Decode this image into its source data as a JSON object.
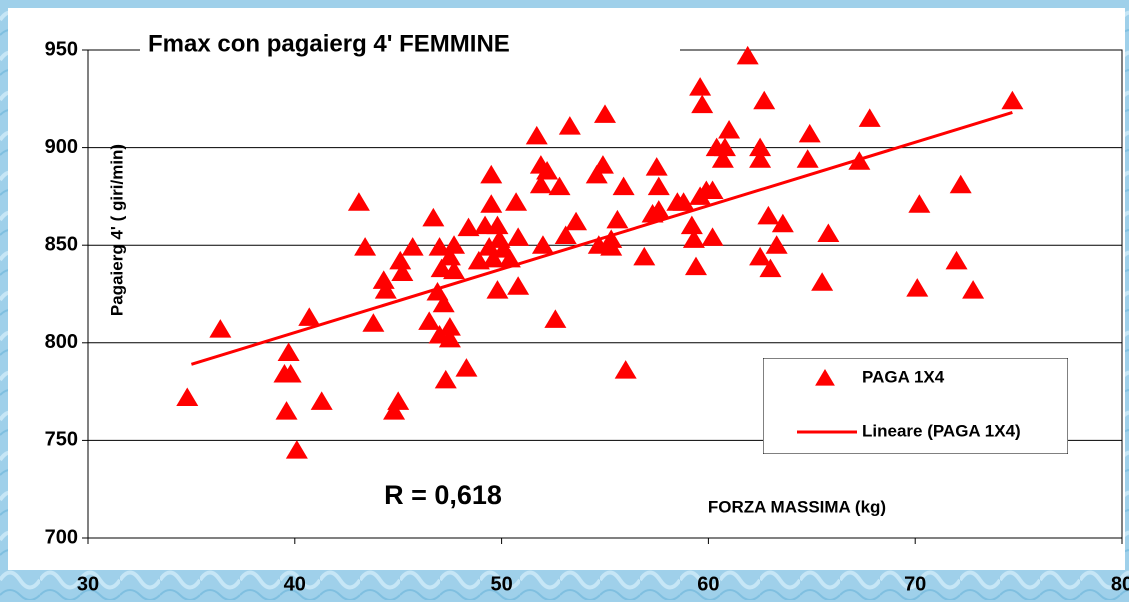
{
  "chart_data": {
    "type": "scatter",
    "title": "Fmax con pagaierg 4' FEMMINE",
    "x_label": "FORZA MASSIMA (kg)",
    "y_label": "Pagaierg 4' ( giri/min)",
    "annotation": "R = 0,618",
    "xlim": [
      30,
      80
    ],
    "xticks": [
      30,
      40,
      50,
      60,
      70,
      80
    ],
    "ylim": [
      700,
      950
    ],
    "yticks": [
      700,
      750,
      800,
      850,
      900,
      950
    ],
    "grid": true,
    "legend": "bottom-right",
    "series": [
      {
        "name": "PAGA 1X4",
        "color": "#ff0000",
        "x": [
          34.8,
          36.4,
          39.7,
          39.5,
          39.8,
          39.6,
          40.1,
          40.7,
          41.3,
          43.1,
          43.4,
          43.8,
          44.3,
          44.4,
          44.8,
          45.0,
          45.1,
          45.2,
          45.7,
          46.5,
          46.7,
          47.0,
          46.9,
          47.2,
          47.1,
          47.0,
          47.5,
          47.5,
          47.3,
          47.5,
          47.7,
          47.7,
          48.4,
          48.3,
          48.9,
          49.2,
          49.5,
          49.5,
          49.4,
          49.6,
          49.8,
          49.8,
          49.9,
          50.1,
          50.4,
          50.7,
          50.8,
          50.8,
          51.7,
          51.9,
          51.9,
          52.2,
          52.0,
          52.6,
          52.8,
          53.1,
          53.3,
          53.6,
          54.6,
          54.9,
          55.0,
          54.7,
          55.3,
          55.3,
          55.6,
          55.9,
          56.0,
          56.9,
          57.3,
          57.5,
          57.6,
          57.6,
          58.5,
          58.8,
          59.2,
          59.3,
          59.4,
          59.6,
          59.6,
          59.7,
          59.9,
          60.2,
          60.2,
          60.4,
          60.7,
          60.8,
          61.0,
          61.9,
          62.5,
          62.5,
          62.7,
          62.5,
          62.9,
          63.0,
          63.3,
          63.6,
          64.9,
          64.8,
          65.5,
          65.8,
          67.3,
          67.8,
          70.1,
          70.2,
          72.0,
          72.2,
          72.8,
          74.7
        ],
        "values": [
          772,
          807,
          795,
          784,
          784,
          765,
          745,
          813,
          770,
          872,
          849,
          810,
          832,
          827,
          765,
          770,
          842,
          836,
          849,
          811,
          864,
          849,
          826,
          820,
          838,
          804,
          808,
          802,
          781,
          844,
          837,
          850,
          859,
          787,
          842,
          860,
          871,
          886,
          849,
          843,
          860,
          827,
          853,
          848,
          843,
          872,
          854,
          829,
          906,
          891,
          881,
          888,
          850,
          812,
          880,
          855,
          911,
          862,
          886,
          891,
          917,
          850,
          849,
          853,
          863,
          880,
          786,
          844,
          866,
          890,
          880,
          868,
          872,
          872,
          860,
          853,
          839,
          875,
          931,
          922,
          878,
          878,
          854,
          900,
          894,
          900,
          909,
          947,
          894,
          900,
          924,
          844,
          865,
          838,
          850,
          861,
          907,
          894,
          831,
          856,
          893,
          915,
          828,
          871,
          842,
          881,
          827,
          924
        ]
      },
      {
        "name": "Lineare (PAGA 1X4)",
        "color": "#ff0000",
        "type": "line",
        "x": [
          35,
          74.7
        ],
        "values": [
          789,
          918
        ]
      }
    ]
  }
}
